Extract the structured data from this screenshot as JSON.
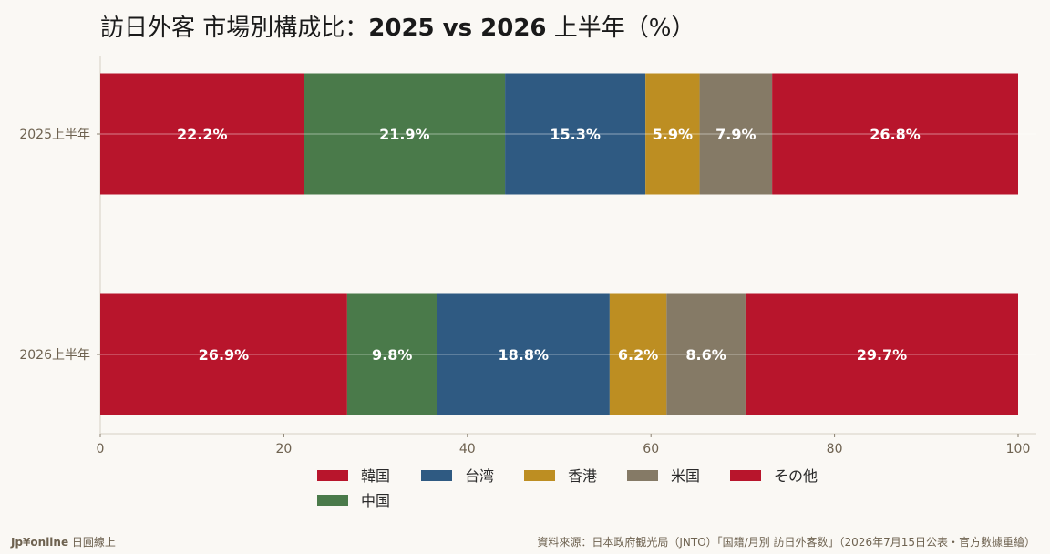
{
  "title": {
    "prefix": "訪日外客 市場別構成比：",
    "bold": "2025 vs 2026",
    "suffix": " 上半年（%）"
  },
  "footer": {
    "brand": "Jp¥online",
    "brand_sub": " 日圓線上",
    "source": "資料來源：日本政府観光局（JNTO）「国籍/月別 訪日外客数」（2026年7月15日公表・官方數據重繪）"
  },
  "chart_data": {
    "type": "bar",
    "orientation": "horizontal",
    "stacked": true,
    "categories": [
      "2025上半年",
      "2026上半年"
    ],
    "series": [
      {
        "name": "韓国",
        "color": "#b8152c",
        "values": [
          22.2,
          26.9
        ],
        "labels": [
          "22.2%",
          "26.9%"
        ]
      },
      {
        "name": "中国",
        "color": "#4a7a4a",
        "values": [
          21.9,
          9.8
        ],
        "labels": [
          "21.9%",
          "9.8%"
        ]
      },
      {
        "name": "台湾",
        "color": "#2f5a82",
        "values": [
          15.3,
          18.8
        ],
        "labels": [
          "15.3%",
          "18.8%"
        ]
      },
      {
        "name": "香港",
        "color": "#bd8e22",
        "values": [
          5.9,
          6.2
        ],
        "labels": [
          "5.9%",
          "6.2%"
        ]
      },
      {
        "name": "米国",
        "color": "#857a66",
        "values": [
          7.9,
          8.6
        ],
        "labels": [
          "7.9%",
          "8.6%"
        ]
      },
      {
        "name": "その他",
        "color": "#b8152c",
        "values": [
          26.8,
          29.7
        ],
        "labels": [
          "26.8%",
          "29.7%"
        ]
      }
    ],
    "xlim": [
      0,
      100
    ],
    "xticks": [
      0,
      20,
      40,
      60,
      80,
      100
    ],
    "xtick_labels": [
      "0",
      "20",
      "40",
      "60",
      "80",
      "100"
    ],
    "legend_order": [
      "韓国",
      "台湾",
      "香港",
      "米国",
      "その他",
      "中国"
    ],
    "legend_position": "bottom",
    "grid": "horizontal"
  }
}
